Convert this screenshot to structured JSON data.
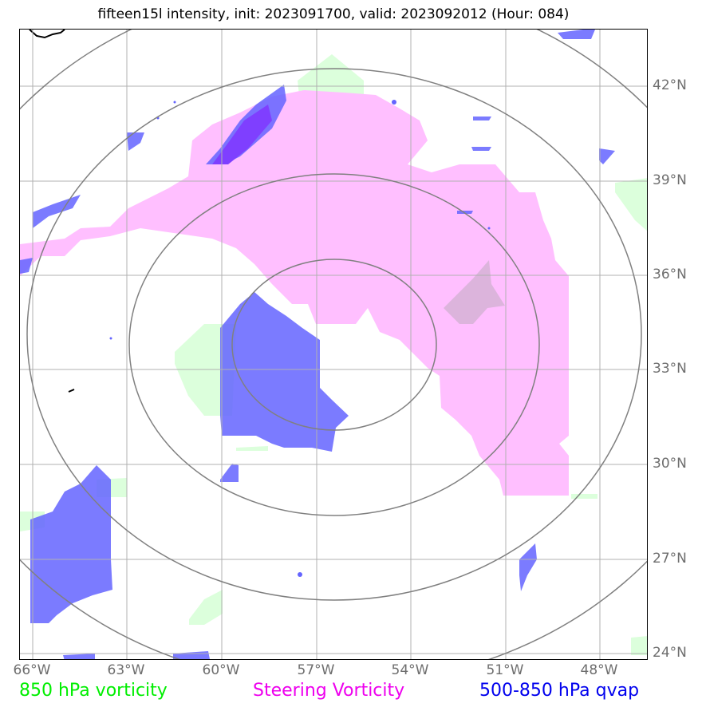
{
  "title": "fifteen15l intensity, init: 2023091700, valid: 2023092012 (Hour: 084)",
  "axes": {
    "lat_labels": [
      "42°N",
      "39°N",
      "36°N",
      "33°N",
      "30°N",
      "27°N",
      "24°N"
    ],
    "lon_labels": [
      "66°W",
      "63°W",
      "60°W",
      "57°W",
      "54°W",
      "51°W",
      "48°W"
    ]
  },
  "legend": {
    "green_label": "850 hPa vorticity",
    "magenta_label": "Steering Vorticity",
    "blue_label": "500-850 hPa qvap"
  },
  "colors": {
    "vorticity_850": "#dcffdc",
    "steering_vorticity": "#ffbfff",
    "qvap": "#6464ff",
    "qvap_dark": "#7f3fff",
    "grid": "#b0b0b0",
    "range_rings": "#808080",
    "legend_green": "#00ee00",
    "legend_magenta": "#ee00ee",
    "legend_blue": "#0000ee"
  }
}
